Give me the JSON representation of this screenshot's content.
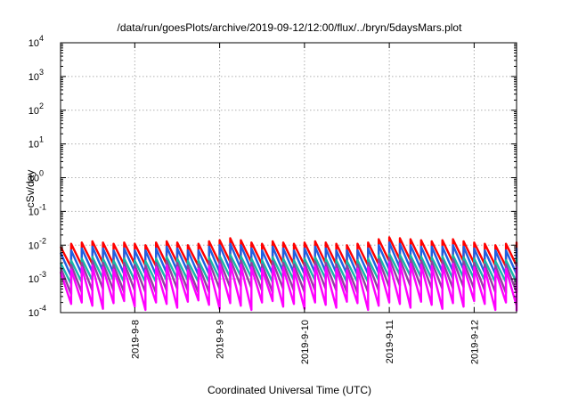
{
  "chart_data": {
    "type": "line",
    "title": "/data/run/goesPlots/archive/2019-09-12/12:00/flux/../bryn/5daysMars.plot",
    "xlabel": "Coordinated Universal Time (UTC)",
    "ylabel": "cSv/day",
    "y_scale": "log",
    "ylim": [
      0.0001,
      10000
    ],
    "y_ticks": [
      {
        "base": "10",
        "exp": "4"
      },
      {
        "base": "10",
        "exp": "3"
      },
      {
        "base": "10",
        "exp": "2"
      },
      {
        "base": "10",
        "exp": "1"
      },
      {
        "base": "10",
        "exp": "0"
      },
      {
        "base": "10",
        "exp": "-1"
      },
      {
        "base": "10",
        "exp": "-2"
      },
      {
        "base": "10",
        "exp": "-3"
      },
      {
        "base": "10",
        "exp": "-4"
      }
    ],
    "xlim": [
      "2019-09-07 03:00",
      "2019-09-12 12:00"
    ],
    "x_ticks": [
      "2019-9-8",
      "2019-9-9",
      "2019-9-10",
      "2019-9-11",
      "2019-9-12"
    ],
    "grid": true,
    "sawtooth_period_hours": 3,
    "series": [
      {
        "color": "#ff0000",
        "peaks": [
          0.009,
          0.011,
          0.012,
          0.013,
          0.012,
          0.011,
          0.012,
          0.011,
          0.01,
          0.012,
          0.013,
          0.012,
          0.01,
          0.011,
          0.013,
          0.014,
          0.016,
          0.014,
          0.012,
          0.011,
          0.013,
          0.012,
          0.011,
          0.012,
          0.013,
          0.012,
          0.011,
          0.01,
          0.011,
          0.012,
          0.015,
          0.017,
          0.016,
          0.015,
          0.014,
          0.013,
          0.014,
          0.015,
          0.013,
          0.012,
          0.011,
          0.01,
          0.011,
          0.012,
          0.013,
          0.014,
          0.013,
          0.012,
          0.011,
          0.01,
          0.011,
          0.012,
          0.016,
          0.014,
          0.012,
          0.011,
          0.01,
          0.011,
          0.012,
          0.013,
          0.012,
          0.011,
          0.01,
          0.011,
          0.012,
          0.011,
          0.01,
          0.011,
          0.012,
          0.011,
          0.01,
          0.011,
          0.01,
          0.011
        ],
        "troughs": [
          0.0022,
          0.0025,
          0.0028,
          0.003,
          0.0027,
          0.0026,
          0.0028,
          0.0025,
          0.0024,
          0.0027,
          0.003,
          0.0028,
          0.0024,
          0.0026,
          0.0029,
          0.0032,
          0.0035,
          0.0031,
          0.0027,
          0.0025,
          0.0029,
          0.0027,
          0.0025,
          0.0027,
          0.0029,
          0.0027,
          0.0025,
          0.0023,
          0.0025,
          0.0027,
          0.0033,
          0.0037,
          0.0035,
          0.0033,
          0.0031,
          0.0029,
          0.0031,
          0.0033,
          0.0029,
          0.0027,
          0.0025,
          0.0023,
          0.0025,
          0.0027,
          0.0029,
          0.0031,
          0.0029,
          0.0027,
          0.0025,
          0.0023,
          0.0025,
          0.0027,
          0.0035,
          0.0031,
          0.0027,
          0.0025,
          0.0023,
          0.0025,
          0.0027,
          0.0029,
          0.0027,
          0.0025,
          0.0023,
          0.0025,
          0.0027,
          0.0025,
          0.0023,
          0.0025,
          0.0027,
          0.0025,
          0.0023,
          0.0025,
          0.0023,
          0.0025
        ]
      },
      {
        "color": "#2060e0",
        "peaks": [
          0.006,
          0.007,
          0.008,
          0.009,
          0.008,
          0.007,
          0.008,
          0.007,
          0.007,
          0.008,
          0.009,
          0.008,
          0.007,
          0.007,
          0.009,
          0.01,
          0.011,
          0.01,
          0.008,
          0.007,
          0.009,
          0.008,
          0.007,
          0.008,
          0.009,
          0.008,
          0.007,
          0.007,
          0.007,
          0.008,
          0.01,
          0.012,
          0.011,
          0.01,
          0.009,
          0.009,
          0.009,
          0.01,
          0.009,
          0.008,
          0.007,
          0.007,
          0.007,
          0.008,
          0.009,
          0.009,
          0.009,
          0.008,
          0.007,
          0.007,
          0.007,
          0.008,
          0.011,
          0.009,
          0.008,
          0.007,
          0.007,
          0.007,
          0.008,
          0.009,
          0.008,
          0.007,
          0.007,
          0.007,
          0.008,
          0.007,
          0.007,
          0.007,
          0.008,
          0.007,
          0.007,
          0.007,
          0.007,
          0.007
        ],
        "troughs": [
          0.0012,
          0.0014,
          0.0016,
          0.0017,
          0.0015,
          0.0014,
          0.0016,
          0.0014,
          0.0013,
          0.0015,
          0.0017,
          0.0016,
          0.0013,
          0.0014,
          0.0016,
          0.0018,
          0.002,
          0.0018,
          0.0015,
          0.0014,
          0.0016,
          0.0015,
          0.0014,
          0.0015,
          0.0016,
          0.0015,
          0.0014,
          0.0013,
          0.0014,
          0.0015,
          0.0019,
          0.0021,
          0.002,
          0.0019,
          0.0017,
          0.0016,
          0.0017,
          0.0019,
          0.0016,
          0.0015,
          0.0014,
          0.0013,
          0.0014,
          0.0015,
          0.0016,
          0.0017,
          0.0016,
          0.0015,
          0.0014,
          0.0013,
          0.0014,
          0.0015,
          0.002,
          0.0017,
          0.0015,
          0.0014,
          0.0013,
          0.0014,
          0.0015,
          0.0016,
          0.0015,
          0.0014,
          0.0013,
          0.0014,
          0.0015,
          0.0014,
          0.0013,
          0.0014,
          0.0015,
          0.0014,
          0.0013,
          0.0014,
          0.0013,
          0.0014
        ]
      },
      {
        "color": "#18b8a8",
        "peaks": [
          0.003,
          0.0035,
          0.004,
          0.0045,
          0.004,
          0.0035,
          0.004,
          0.0035,
          0.0034,
          0.004,
          0.0045,
          0.004,
          0.0034,
          0.0036,
          0.0044,
          0.0048,
          0.0052,
          0.0047,
          0.004,
          0.0036,
          0.0044,
          0.004,
          0.0036,
          0.004,
          0.0044,
          0.004,
          0.0036,
          0.0034,
          0.0036,
          0.004,
          0.005,
          0.0056,
          0.0052,
          0.005,
          0.0046,
          0.0044,
          0.0046,
          0.005,
          0.0044,
          0.004,
          0.0036,
          0.0034,
          0.0036,
          0.004,
          0.0044,
          0.0046,
          0.0044,
          0.004,
          0.0036,
          0.0034,
          0.0036,
          0.004,
          0.0052,
          0.0046,
          0.004,
          0.0036,
          0.0034,
          0.0036,
          0.004,
          0.0044,
          0.004,
          0.0036,
          0.0034,
          0.0036,
          0.004,
          0.0036,
          0.0034,
          0.0036,
          0.004,
          0.0036,
          0.0034,
          0.0036,
          0.0034,
          0.0036
        ],
        "troughs": [
          0.0007,
          0.0008,
          0.0009,
          0.001,
          0.0009,
          0.0008,
          0.0009,
          0.0008,
          0.0008,
          0.0009,
          0.001,
          0.0009,
          0.0008,
          0.0008,
          0.001,
          0.0011,
          0.0012,
          0.0011,
          0.0009,
          0.0008,
          0.001,
          0.0009,
          0.0008,
          0.0009,
          0.001,
          0.0009,
          0.0008,
          0.0008,
          0.0008,
          0.0009,
          0.0011,
          0.0013,
          0.0012,
          0.0011,
          0.001,
          0.001,
          0.001,
          0.0011,
          0.001,
          0.0009,
          0.0008,
          0.0008,
          0.0008,
          0.0009,
          0.001,
          0.001,
          0.001,
          0.0009,
          0.0008,
          0.0008,
          0.0008,
          0.0009,
          0.0012,
          0.001,
          0.0009,
          0.0008,
          0.0008,
          0.0008,
          0.0009,
          0.001,
          0.0009,
          0.0008,
          0.0008,
          0.0008,
          0.0009,
          0.0008,
          0.0008,
          0.0008,
          0.0009,
          0.0008,
          0.0008,
          0.0008,
          0.0008,
          0.0008
        ]
      },
      {
        "color": "#9040a0",
        "peaks": [
          0.0022,
          0.0026,
          0.003,
          0.0034,
          0.003,
          0.0026,
          0.003,
          0.0026,
          0.0025,
          0.003,
          0.0034,
          0.003,
          0.0025,
          0.0027,
          0.0033,
          0.0036,
          0.0039,
          0.0035,
          0.003,
          0.0027,
          0.0033,
          0.003,
          0.0027,
          0.003,
          0.0033,
          0.003,
          0.0027,
          0.0025,
          0.0027,
          0.003,
          0.0038,
          0.0042,
          0.0039,
          0.0038,
          0.0035,
          0.0033,
          0.0035,
          0.0038,
          0.0033,
          0.003,
          0.0027,
          0.0025,
          0.0027,
          0.003,
          0.0033,
          0.0035,
          0.0033,
          0.003,
          0.0027,
          0.0025,
          0.0027,
          0.003,
          0.0039,
          0.0035,
          0.003,
          0.0027,
          0.0025,
          0.0027,
          0.003,
          0.0033,
          0.003,
          0.0027,
          0.0025,
          0.0027,
          0.003,
          0.0027,
          0.0025,
          0.0027,
          0.003,
          0.0027,
          0.0025,
          0.0027,
          0.0025,
          0.0027
        ],
        "troughs": [
          0.00035,
          0.0004,
          0.00045,
          0.0005,
          0.00045,
          0.0004,
          0.00045,
          0.0004,
          0.00038,
          0.00045,
          0.0005,
          0.00045,
          0.00038,
          0.0004,
          0.0005,
          0.00055,
          0.0006,
          0.00054,
          0.00045,
          0.0004,
          0.0005,
          0.00045,
          0.0004,
          0.00045,
          0.0005,
          0.00045,
          0.0004,
          0.00038,
          0.0004,
          0.00045,
          0.00057,
          0.00063,
          0.0006,
          0.00057,
          0.00052,
          0.0005,
          0.00052,
          0.00057,
          0.0005,
          0.00045,
          0.0004,
          0.00038,
          0.0004,
          0.00045,
          0.0005,
          0.00052,
          0.0005,
          0.00045,
          0.0004,
          0.00038,
          0.0004,
          0.00045,
          0.0006,
          0.00052,
          0.00045,
          0.0004,
          0.00038,
          0.0004,
          0.00045,
          0.0005,
          0.00045,
          0.0004,
          0.00038,
          0.0004,
          0.00045,
          0.0004,
          0.00038,
          0.0004,
          0.00045,
          0.0004,
          0.00038,
          0.0004,
          0.00038,
          0.0004
        ]
      },
      {
        "color": "#ff00ff",
        "peaks": [
          0.0016,
          0.0019,
          0.0022,
          0.0025,
          0.0022,
          0.0019,
          0.0022,
          0.0019,
          0.0018,
          0.0022,
          0.0025,
          0.0022,
          0.0018,
          0.002,
          0.0024,
          0.0027,
          0.0029,
          0.0026,
          0.0022,
          0.002,
          0.0024,
          0.0022,
          0.002,
          0.0022,
          0.0024,
          0.0022,
          0.002,
          0.0018,
          0.002,
          0.0022,
          0.0028,
          0.0031,
          0.0029,
          0.0028,
          0.0026,
          0.0024,
          0.0026,
          0.0028,
          0.0024,
          0.0022,
          0.002,
          0.0018,
          0.002,
          0.0022,
          0.0024,
          0.0026,
          0.0024,
          0.0022,
          0.002,
          0.0018,
          0.002,
          0.0022,
          0.0029,
          0.0026,
          0.0022,
          0.002,
          0.0018,
          0.002,
          0.0022,
          0.0024,
          0.0022,
          0.002,
          0.0018,
          0.002,
          0.0022,
          0.002,
          0.0018,
          0.002,
          0.0022,
          0.002,
          0.0018,
          0.002,
          0.0018,
          0.002
        ],
        "troughs": [
          0.00018,
          0.0002,
          0.00016,
          0.00013,
          0.00019,
          0.00022,
          0.00015,
          0.00012,
          0.0002,
          0.00018,
          0.00014,
          0.00021,
          0.00023,
          0.00017,
          0.00013,
          0.00019,
          0.00016,
          0.00012,
          0.0002,
          0.00022,
          0.00015,
          0.00018,
          0.00013,
          0.0002,
          0.00017,
          0.00014,
          0.00021,
          0.00019,
          0.00012,
          0.00016,
          0.0002,
          0.00018,
          0.00014,
          0.00021,
          0.00017,
          0.00013,
          0.00019,
          0.00015,
          0.00022,
          0.00018,
          0.00012,
          0.0002,
          0.00016,
          0.00011,
          0.00019,
          0.00021,
          0.00014,
          0.00018,
          0.00012,
          0.0002,
          0.00017,
          0.00013,
          0.00019,
          0.00016,
          0.00021,
          0.00018,
          0.00013,
          0.0002,
          0.00015,
          0.00011,
          0.00019,
          0.00017,
          0.00013,
          0.0002,
          0.00016,
          0.00012,
          0.00019,
          0.00021,
          0.00014,
          0.00018,
          0.00012,
          0.0002,
          0.00016,
          0.00015
        ]
      }
    ]
  }
}
